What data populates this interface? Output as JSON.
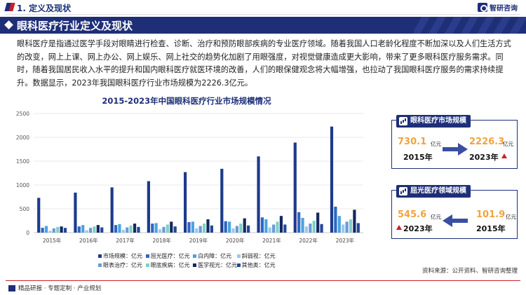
{
  "header": {
    "section": "1. 定义及现状",
    "logo_text": "智研咨询"
  },
  "title": "眼科医疗行业定义及现状",
  "paragraph": "眼科医疗是指通过医学手段对眼睛进行检查、诊断、治疗和预防眼部疾病的专业医疗领域。随着我国人口老龄化程度不断加深以及人们生活方式的改变，网上上课、网上办公、网上娱乐、网上社交的趋势化加剧了用眼强度，对视觉健康造成更大影响，带来了更多眼科医疗服务需求。同时，随着我国居民收入水平的提升和国内眼科医疗就医环境的改善，人们的眼保健观念将大幅增强，也拉动了我国眼科医疗服务的需求持续提升。数据显示，2023年我国眼科医疗行业市场规模为2226.3亿元。",
  "colors": {
    "navy": "#1e2f78",
    "orange": "#f2a33a",
    "red": "#c9202b"
  },
  "chart_data": {
    "type": "bar",
    "title": "2015-2023年中国眼科医疗行业市场规模情况",
    "categories": [
      "2015年",
      "2016年",
      "2017年",
      "2018年",
      "2019年",
      "2020年",
      "2021年",
      "2022年",
      "2023年"
    ],
    "ylim": [
      0,
      2500
    ],
    "yticks": [
      0,
      500,
      1000,
      1500,
      2000,
      2500
    ],
    "grid": true,
    "legend_position": "bottom",
    "series": [
      {
        "name": "市场规模：亿元",
        "color": "#1e3a8a",
        "values": [
          730.1,
          840,
          950,
          1080,
          1270,
          1340,
          1600,
          1890,
          2226.3
        ]
      },
      {
        "name": "屈光医疗：亿元",
        "color": "#2f66c4",
        "values": [
          101.9,
          130,
          160,
          190,
          220,
          240,
          320,
          430,
          545.6
        ]
      },
      {
        "name": "白内障：亿元",
        "color": "#4aa3e0",
        "values": [
          140,
          160,
          180,
          200,
          230,
          230,
          280,
          310,
          350
        ]
      },
      {
        "name": "斜弱视：亿元",
        "color": "#9cc8ec",
        "values": [
          40,
          50,
          60,
          70,
          90,
          90,
          110,
          130,
          170
        ]
      },
      {
        "name": "眼表治疗：亿元",
        "color": "#6b9ad6",
        "values": [
          90,
          100,
          110,
          120,
          140,
          140,
          170,
          190,
          230
        ]
      },
      {
        "name": "眼底疾病：亿元",
        "color": "#7fd0c8",
        "values": [
          120,
          130,
          150,
          170,
          190,
          190,
          230,
          250,
          280
        ]
      },
      {
        "name": "医学视光：亿元",
        "color": "#13285e",
        "values": [
          130,
          160,
          190,
          230,
          280,
          300,
          350,
          420,
          480
        ]
      },
      {
        "name": "其他类：亿元",
        "color": "#24479b",
        "values": [
          100,
          110,
          120,
          130,
          150,
          150,
          170,
          180,
          200
        ]
      }
    ]
  },
  "card1": {
    "title": "眼科医疗市场规模",
    "from_value": "730.1",
    "from_unit": "亿元",
    "from_year": "2015年",
    "to_value": "2226.3",
    "to_unit": "亿元",
    "to_year": "2023年"
  },
  "card2": {
    "title": "屈光医疗领域规模",
    "from_value": "545.6",
    "from_unit": "亿元",
    "from_year": "2023年",
    "to_value": "101.9",
    "to_unit": "亿元",
    "to_year": "2015年"
  },
  "footer": {
    "left": "精品研报 · 专题定制 · 产业规划",
    "source": "资料来源：公开资料、智研咨询整理"
  }
}
